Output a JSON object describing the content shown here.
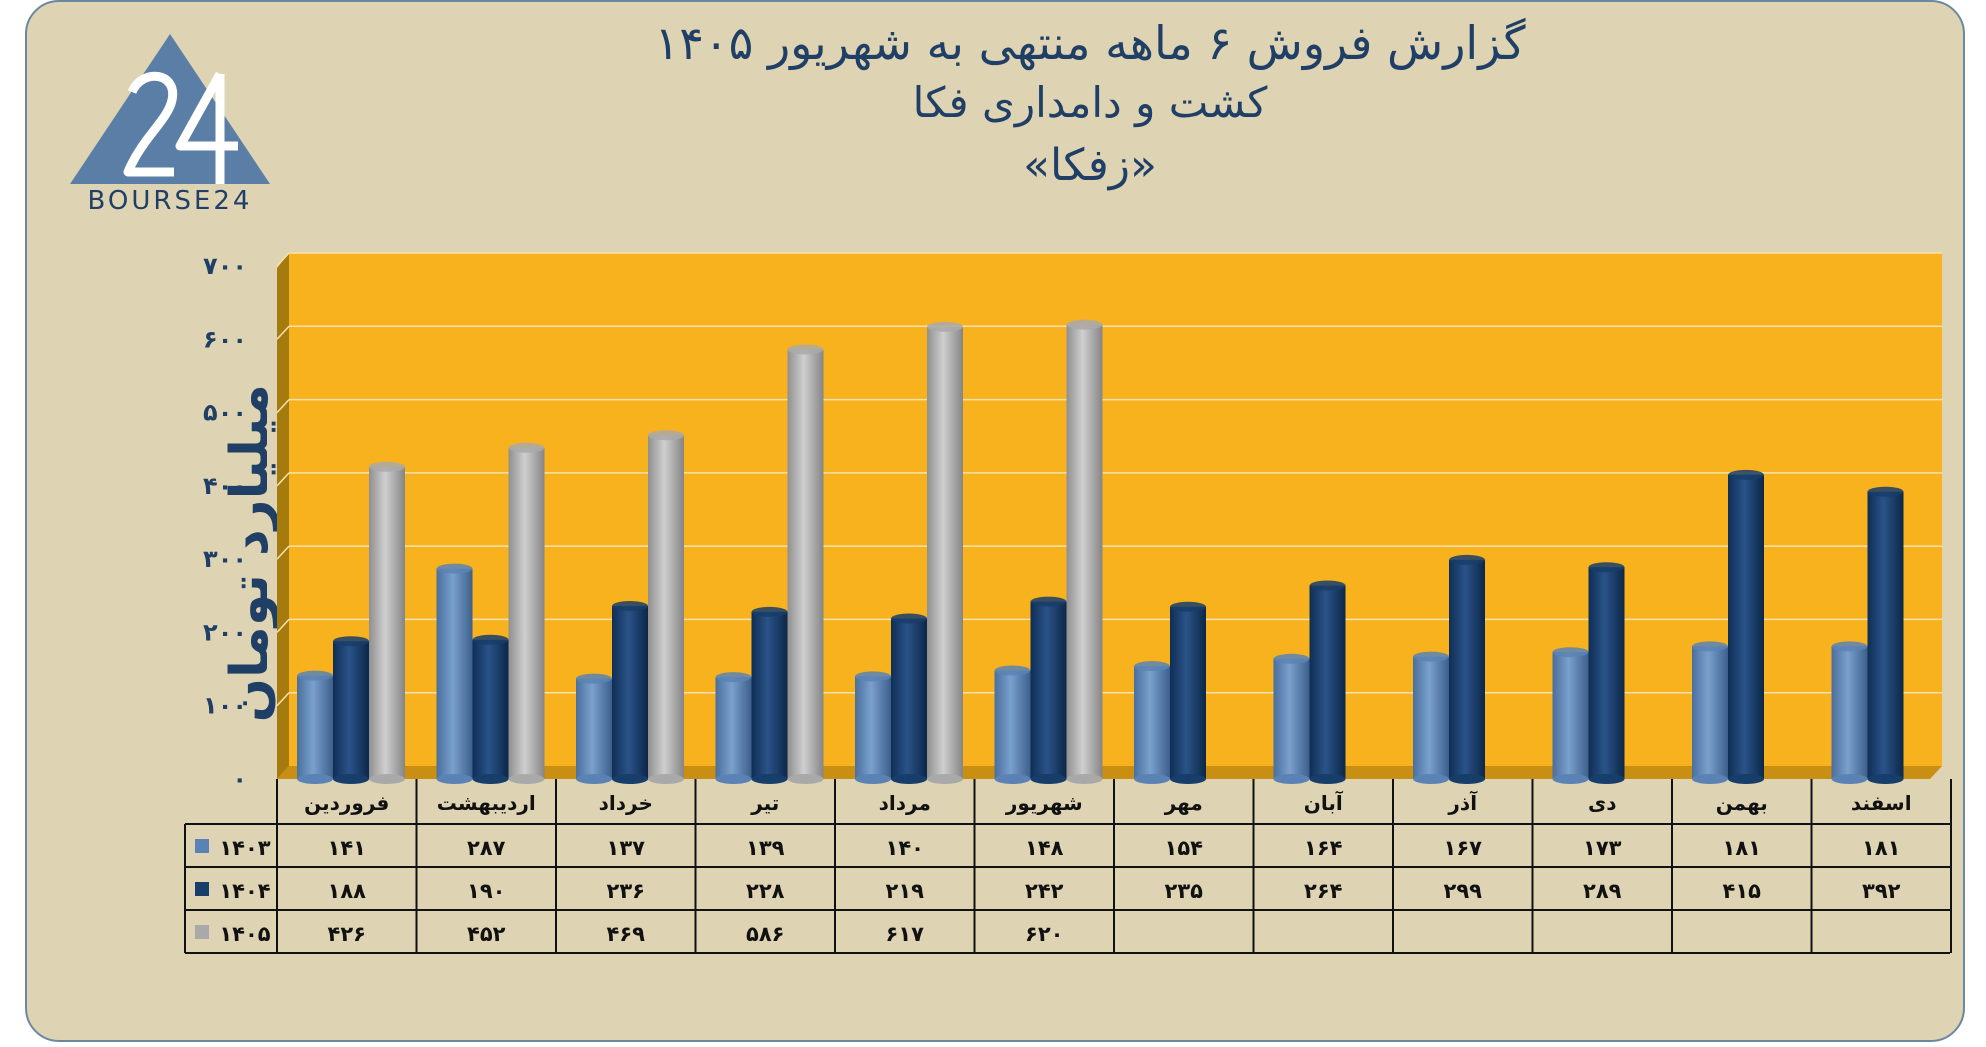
{
  "title": {
    "line1": "گزارش  فروش ۶ ماهه منتهی به شهریور ۱۴۰۵",
    "line2": "کشت و دامداری فکا",
    "line3": "«زفکا»"
  },
  "logo": {
    "text": "BOURSE24",
    "mark": "24"
  },
  "colors": {
    "background": "#ded4b3",
    "plot_area": "#f7b21e",
    "series_1403": "#5b82b5",
    "series_1404": "#173d6b",
    "series_1405": "#a9a9a9",
    "title": "#1f3f66"
  },
  "chart_data": {
    "type": "bar",
    "ylabel": "میلیارد تومان",
    "ylim": [
      0,
      700
    ],
    "yticks": [
      "۰",
      "۱۰۰",
      "۲۰۰",
      "۳۰۰",
      "۴۰۰",
      "۵۰۰",
      "۶۰۰",
      "۷۰۰"
    ],
    "grid": true,
    "categories": [
      "فروردین",
      "اردیبهشت",
      "خرداد",
      "تیر",
      "مرداد",
      "شهریور",
      "مهر",
      "آبان",
      "آذر",
      "دی",
      "بهمن",
      "اسفند"
    ],
    "series": [
      {
        "name": "۱۴۰۳",
        "color": "#5b82b5",
        "values": [
          141,
          287,
          137,
          139,
          140,
          148,
          154,
          164,
          167,
          173,
          181,
          181
        ],
        "labels": [
          "۱۴۱",
          "۲۸۷",
          "۱۳۷",
          "۱۳۹",
          "۱۴۰",
          "۱۴۸",
          "۱۵۴",
          "۱۶۴",
          "۱۶۷",
          "۱۷۳",
          "۱۸۱",
          "۱۸۱"
        ]
      },
      {
        "name": "۱۴۰۴",
        "color": "#173d6b",
        "values": [
          188,
          190,
          236,
          228,
          219,
          242,
          235,
          264,
          299,
          289,
          415,
          392
        ],
        "labels": [
          "۱۸۸",
          "۱۹۰",
          "۲۳۶",
          "۲۲۸",
          "۲۱۹",
          "۲۴۲",
          "۲۳۵",
          "۲۶۴",
          "۲۹۹",
          "۲۸۹",
          "۴۱۵",
          "۳۹۲"
        ]
      },
      {
        "name": "۱۴۰۵",
        "color": "#a9a9a9",
        "values": [
          426,
          452,
          469,
          586,
          617,
          620,
          null,
          null,
          null,
          null,
          null,
          null
        ],
        "labels": [
          "۴۲۶",
          "۴۵۲",
          "۴۶۹",
          "۵۸۶",
          "۶۱۷",
          "۶۲۰",
          "",
          "",
          "",
          "",
          "",
          ""
        ]
      }
    ]
  }
}
